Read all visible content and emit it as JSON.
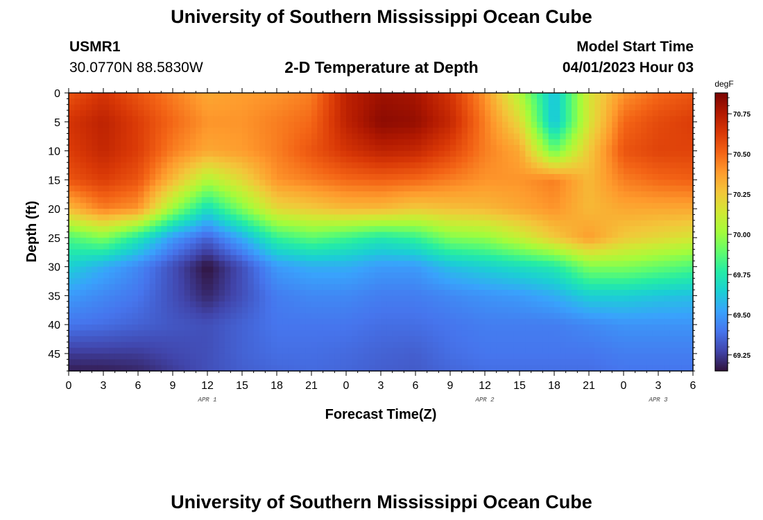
{
  "page": {
    "title_top": "University of Southern Mississippi Ocean Cube",
    "title_bottom": "University of Southern Mississippi Ocean Cube",
    "station_id": "USMR1",
    "station_coords": "30.0770N  88.5830W",
    "chart_heading": "2-D Temperature at Depth",
    "model_label": "Model Start Time",
    "model_time": "04/01/2023 Hour 03"
  },
  "chart_data": {
    "type": "heatmap",
    "title": "2-D Temperature at Depth",
    "xlabel": "Forecast Time(Z)",
    "ylabel": "Depth (ft)",
    "x_tick_labels": [
      "0",
      "3",
      "6",
      "9",
      "12",
      "15",
      "18",
      "21",
      "0",
      "3",
      "6",
      "9",
      "12",
      "15",
      "18",
      "21",
      "0",
      "3",
      "6"
    ],
    "x_hours_range": [
      0,
      54
    ],
    "date_labels": [
      {
        "text": "APR 1",
        "hour": 12
      },
      {
        "text": "APR 2",
        "hour": 36
      },
      {
        "text": "APR 3",
        "hour": 51
      }
    ],
    "y_ticks": [
      0,
      5,
      10,
      15,
      20,
      25,
      30,
      35,
      40,
      45
    ],
    "ylim": [
      0,
      48
    ],
    "colorbar": {
      "unit": "degF",
      "ticks": [
        69.25,
        69.5,
        69.75,
        70.0,
        70.25,
        70.5,
        70.75
      ],
      "tick_labels": [
        "69.25",
        "69.50",
        "69.75",
        "70.00",
        "70.25",
        "70.50",
        "70.75"
      ],
      "range": [
        69.15,
        70.88
      ],
      "colormap": [
        "#30123b",
        "#4145ab",
        "#4675ed",
        "#39a2fc",
        "#1bcfd4",
        "#24eca6",
        "#61fc6c",
        "#a4fc3b",
        "#d1e834",
        "#f3c63a",
        "#fe9b2d",
        "#f36315",
        "#d93806",
        "#b11901",
        "#7a0402"
      ]
    },
    "temperature_grid_degF": {
      "hours": [
        0,
        3,
        6,
        9,
        12,
        15,
        18,
        21,
        24,
        27,
        30,
        33,
        36,
        39,
        42,
        45,
        48,
        51,
        54
      ],
      "depths": [
        0,
        5,
        10,
        15,
        20,
        25,
        30,
        35,
        40,
        45,
        48
      ],
      "values": [
        [
          70.55,
          70.65,
          70.55,
          70.45,
          70.35,
          70.38,
          70.4,
          70.45,
          70.72,
          70.8,
          70.78,
          70.65,
          70.4,
          70.05,
          69.6,
          70.15,
          70.4,
          70.5,
          70.55
        ],
        [
          70.65,
          70.72,
          70.62,
          70.5,
          70.4,
          70.4,
          70.45,
          70.5,
          70.72,
          70.84,
          70.82,
          70.7,
          70.45,
          70.2,
          69.6,
          70.15,
          70.5,
          70.58,
          70.62
        ],
        [
          70.62,
          70.7,
          70.62,
          70.45,
          70.35,
          70.38,
          70.45,
          70.55,
          70.65,
          70.72,
          70.7,
          70.6,
          70.45,
          70.35,
          69.9,
          70.25,
          70.55,
          70.6,
          70.6
        ],
        [
          70.55,
          70.62,
          70.55,
          70.3,
          70.05,
          70.2,
          70.4,
          70.45,
          70.5,
          70.52,
          70.5,
          70.45,
          70.4,
          70.4,
          70.45,
          70.3,
          70.45,
          70.5,
          70.52
        ],
        [
          70.3,
          70.45,
          70.4,
          70.0,
          69.7,
          69.95,
          70.2,
          70.25,
          70.3,
          70.3,
          70.25,
          70.28,
          70.3,
          70.35,
          70.4,
          70.3,
          70.35,
          70.35,
          70.35
        ],
        [
          69.85,
          69.95,
          69.75,
          69.5,
          69.35,
          69.55,
          69.8,
          69.88,
          69.82,
          69.75,
          69.8,
          69.95,
          69.98,
          70.1,
          70.25,
          70.38,
          70.25,
          70.2,
          70.15
        ],
        [
          69.65,
          69.55,
          69.45,
          69.3,
          69.15,
          69.3,
          69.5,
          69.55,
          69.55,
          69.5,
          69.5,
          69.6,
          69.65,
          69.7,
          69.75,
          69.95,
          69.95,
          69.9,
          69.85
        ],
        [
          69.5,
          69.45,
          69.4,
          69.3,
          69.2,
          69.3,
          69.42,
          69.45,
          69.45,
          69.42,
          69.42,
          69.45,
          69.48,
          69.5,
          69.55,
          69.65,
          69.65,
          69.62,
          69.6
        ],
        [
          69.4,
          69.38,
          69.35,
          69.32,
          69.3,
          69.35,
          69.4,
          69.4,
          69.4,
          69.38,
          69.38,
          69.4,
          69.42,
          69.42,
          69.42,
          69.45,
          69.48,
          69.48,
          69.48
        ],
        [
          69.25,
          69.25,
          69.25,
          69.28,
          69.3,
          69.35,
          69.38,
          69.38,
          69.37,
          69.35,
          69.34,
          69.38,
          69.4,
          69.4,
          69.4,
          69.4,
          69.42,
          69.42,
          69.42
        ],
        [
          69.18,
          69.18,
          69.2,
          69.25,
          69.3,
          69.34,
          69.36,
          69.37,
          69.36,
          69.34,
          69.33,
          69.36,
          69.38,
          69.38,
          69.38,
          69.38,
          69.4,
          69.4,
          69.4
        ]
      ]
    }
  }
}
